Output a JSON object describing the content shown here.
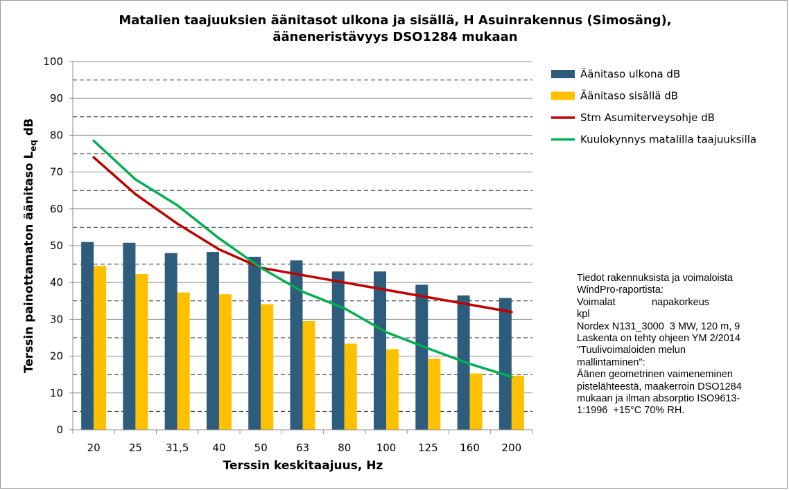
{
  "chart_data": {
    "type": "bar",
    "title": [
      "Matalien taajuuksien äänitasot ulkona ja sisällä, H Asuinrakennus (Simosäng),",
      "ääneneristävyys DSO1284 mukaan"
    ],
    "ylabel": "Terssin painottamaton äänitaso L",
    "ylabel_sub": "eq",
    "ylabel_unit": " dB",
    "xlabel": "Terssin keskitaajuus, Hz",
    "ylim": [
      0,
      100
    ],
    "yticks": [
      "0",
      "10",
      "20",
      "30",
      "40",
      "50",
      "60",
      "70",
      "80",
      "90",
      "100"
    ],
    "grid": "dashed minor, solid major",
    "legend_position": "right",
    "categories": [
      "20",
      "25",
      "31,5",
      "40",
      "50",
      "63",
      "80",
      "100",
      "125",
      "160",
      "200"
    ],
    "series": [
      {
        "name": "Äänitaso ulkona dB",
        "kind": "bar",
        "color": "#2e5c7c",
        "values": [
          51,
          50.8,
          48,
          48.3,
          47,
          46,
          43,
          43,
          39.4,
          36.5,
          35.8
        ]
      },
      {
        "name": "Äänitaso sisällä dB",
        "kind": "bar",
        "color": "#ffc000",
        "values": [
          44.5,
          42.3,
          37.3,
          36.8,
          34.1,
          29.5,
          23.4,
          21.9,
          19.3,
          15.3,
          14.7
        ]
      },
      {
        "name": "Stm Asumiterveysohje dB",
        "kind": "line",
        "color": "#c00000",
        "values": [
          74,
          64,
          56,
          49,
          44,
          42,
          40,
          38,
          36,
          34,
          32
        ]
      },
      {
        "name": "Kuulokynnys matalilla taajuuksilla",
        "kind": "line",
        "color": "#00b050",
        "values": [
          78.5,
          68,
          61,
          52,
          44,
          37.5,
          33,
          26.5,
          22.1,
          17.9,
          14.4
        ]
      }
    ]
  },
  "notes": [
    "Tiedot rakennuksista ja voimaloista",
    "WindPro-raportista:",
    "Voimalat             napakorkeus",
    "kpl",
    "Nordex N131_3000  3 MW, 120 m, 9",
    "Laskenta on tehty ohjeen YM 2/2014",
    "\"Tuulivoimaloiden melun",
    "mallintaminen\":",
    "Äänen geometrinen vaimeneminen",
    "pistelähteestä, maakerroin DSO1284",
    "mukaan ja ilman absorptio ISO9613-",
    "1:1996  +15°C 70% RH."
  ]
}
